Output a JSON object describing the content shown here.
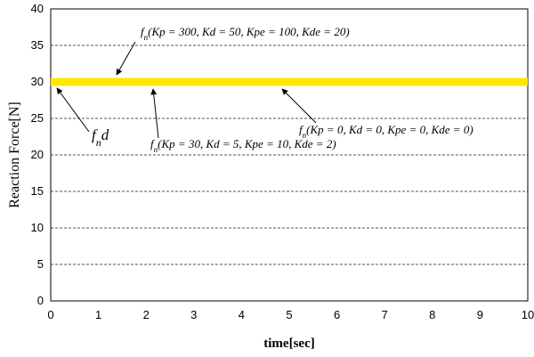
{
  "chart_data": {
    "type": "line",
    "xlabel": "time[sec]",
    "ylabel": "Reaction Force[N]",
    "xlim": [
      0,
      10
    ],
    "ylim": [
      0,
      40
    ],
    "x_ticks": [
      "0",
      "1",
      "2",
      "3",
      "4",
      "5",
      "6",
      "7",
      "8",
      "9",
      "10"
    ],
    "y_ticks": [
      "0",
      "5",
      "10",
      "15",
      "20",
      "25",
      "30",
      "35",
      "40"
    ],
    "grid": "horizontal dashed",
    "series": [
      {
        "name": "f_n d",
        "x": [
          0,
          10
        ],
        "y": [
          30,
          30
        ],
        "color": "#ffe800"
      },
      {
        "name": "f_n(Kp = 300, Kd = 50, Kpe = 100, Kde = 20)",
        "x": [
          0,
          10
        ],
        "y": [
          30,
          30
        ],
        "color": "#ffe800"
      },
      {
        "name": "f_n(Kp = 30, Kd = 5, Kpe = 10, Kde = 2)",
        "x": [
          0,
          10
        ],
        "y": [
          30,
          30
        ],
        "color": "#ffe800"
      },
      {
        "name": "f_n(Kp = 0, Kd = 0, Kpe = 0, Kde = 0)",
        "x": [
          0,
          10
        ],
        "y": [
          30,
          30
        ],
        "color": "#ffe800"
      }
    ],
    "annotations": [
      {
        "text": "fn(Kp = 300, Kd = 50, Kpe = 100, Kde = 20)",
        "x": 1.4,
        "y": 30.5
      },
      {
        "text": "fnd",
        "x": 0.1,
        "y": 29.5
      },
      {
        "text": "fn(Kp = 30, Kd = 5, Kpe = 10, Kde = 2)",
        "x": 2.2,
        "y": 29.0
      },
      {
        "text": "fn(Kp = 0, Kd = 0, Kpe = 0, Kde = 0)",
        "x": 4.8,
        "y": 29.0
      }
    ]
  }
}
